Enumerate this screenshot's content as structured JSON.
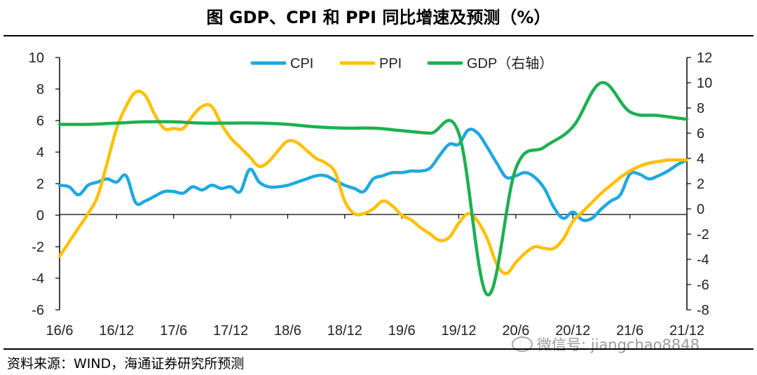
{
  "title": "图  GDP、CPI 和 PPI 同比增速及预测（%）",
  "source": "资料来源：WIND，海通证券研究所预测",
  "watermark": "微信号: jiangchao8848",
  "chart_data": {
    "type": "line",
    "x_tick_labels": [
      "16/6",
      "16/12",
      "17/6",
      "17/12",
      "18/6",
      "18/12",
      "19/6",
      "19/12",
      "20/6",
      "20/12",
      "21/6",
      "21/12"
    ],
    "x_range": [
      "2016-06",
      "2021-12"
    ],
    "left_axis": {
      "ylim": [
        -6,
        10
      ],
      "ticks": [
        -6,
        -4,
        -2,
        0,
        2,
        4,
        6,
        8,
        10
      ]
    },
    "right_axis": {
      "ylim": [
        -8,
        12
      ],
      "ticks": [
        -8,
        -6,
        -4,
        -2,
        0,
        2,
        4,
        6,
        8,
        10,
        12
      ]
    },
    "legend_position": "top-center",
    "series": [
      {
        "name": "CPI",
        "axis": "left",
        "color": "#1FA8E0",
        "points": [
          [
            "2016-06",
            1.9
          ],
          [
            "2016-07",
            1.8
          ],
          [
            "2016-08",
            1.3
          ],
          [
            "2016-09",
            1.9
          ],
          [
            "2016-10",
            2.1
          ],
          [
            "2016-11",
            2.3
          ],
          [
            "2016-12",
            2.1
          ],
          [
            "2017-01",
            2.5
          ],
          [
            "2017-02",
            0.8
          ],
          [
            "2017-03",
            0.9
          ],
          [
            "2017-04",
            1.2
          ],
          [
            "2017-05",
            1.5
          ],
          [
            "2017-06",
            1.5
          ],
          [
            "2017-07",
            1.4
          ],
          [
            "2017-08",
            1.8
          ],
          [
            "2017-09",
            1.6
          ],
          [
            "2017-10",
            1.9
          ],
          [
            "2017-11",
            1.7
          ],
          [
            "2017-12",
            1.8
          ],
          [
            "2018-01",
            1.5
          ],
          [
            "2018-02",
            2.9
          ],
          [
            "2018-03",
            2.1
          ],
          [
            "2018-04",
            1.8
          ],
          [
            "2018-05",
            1.8
          ],
          [
            "2018-06",
            1.9
          ],
          [
            "2018-07",
            2.1
          ],
          [
            "2018-08",
            2.3
          ],
          [
            "2018-09",
            2.5
          ],
          [
            "2018-10",
            2.5
          ],
          [
            "2018-11",
            2.2
          ],
          [
            "2018-12",
            1.9
          ],
          [
            "2019-01",
            1.7
          ],
          [
            "2019-02",
            1.5
          ],
          [
            "2019-03",
            2.3
          ],
          [
            "2019-04",
            2.5
          ],
          [
            "2019-05",
            2.7
          ],
          [
            "2019-06",
            2.7
          ],
          [
            "2019-07",
            2.8
          ],
          [
            "2019-08",
            2.8
          ],
          [
            "2019-09",
            3.0
          ],
          [
            "2019-10",
            3.8
          ],
          [
            "2019-11",
            4.5
          ],
          [
            "2019-12",
            4.5
          ],
          [
            "2020-01",
            5.4
          ],
          [
            "2020-02",
            5.2
          ],
          [
            "2020-03",
            4.3
          ],
          [
            "2020-04",
            3.3
          ],
          [
            "2020-05",
            2.4
          ],
          [
            "2020-06",
            2.5
          ],
          [
            "2020-07",
            2.7
          ],
          [
            "2020-08",
            2.4
          ],
          [
            "2020-09",
            1.7
          ],
          [
            "2020-10",
            0.5
          ],
          [
            "2020-11",
            -0.2
          ],
          [
            "2020-12",
            0.2
          ],
          [
            "2021-01",
            -0.3
          ],
          [
            "2021-02",
            -0.2
          ],
          [
            "2021-03",
            0.4
          ],
          [
            "2021-04",
            0.9
          ],
          [
            "2021-05",
            1.3
          ],
          [
            "2021-06",
            2.6
          ],
          [
            "2021-07",
            2.6
          ],
          [
            "2021-08",
            2.3
          ],
          [
            "2021-09",
            2.5
          ],
          [
            "2021-10",
            2.8
          ],
          [
            "2021-11",
            3.2
          ],
          [
            "2021-12",
            3.5
          ]
        ]
      },
      {
        "name": "PPI",
        "axis": "left",
        "color": "#FFC000",
        "points": [
          [
            "2016-06",
            -2.6
          ],
          [
            "2016-07",
            -1.7
          ],
          [
            "2016-08",
            -0.8
          ],
          [
            "2016-09",
            0.1
          ],
          [
            "2016-10",
            1.2
          ],
          [
            "2016-11",
            3.3
          ],
          [
            "2016-12",
            5.5
          ],
          [
            "2017-01",
            6.9
          ],
          [
            "2017-02",
            7.8
          ],
          [
            "2017-03",
            7.6
          ],
          [
            "2017-04",
            6.4
          ],
          [
            "2017-05",
            5.5
          ],
          [
            "2017-06",
            5.5
          ],
          [
            "2017-07",
            5.5
          ],
          [
            "2017-08",
            6.3
          ],
          [
            "2017-09",
            6.9
          ],
          [
            "2017-10",
            6.9
          ],
          [
            "2017-11",
            5.8
          ],
          [
            "2017-12",
            4.9
          ],
          [
            "2018-01",
            4.3
          ],
          [
            "2018-02",
            3.7
          ],
          [
            "2018-03",
            3.1
          ],
          [
            "2018-04",
            3.4
          ],
          [
            "2018-05",
            4.1
          ],
          [
            "2018-06",
            4.7
          ],
          [
            "2018-07",
            4.6
          ],
          [
            "2018-08",
            4.1
          ],
          [
            "2018-09",
            3.6
          ],
          [
            "2018-10",
            3.3
          ],
          [
            "2018-11",
            2.7
          ],
          [
            "2018-12",
            0.9
          ],
          [
            "2019-01",
            0.1
          ],
          [
            "2019-02",
            0.1
          ],
          [
            "2019-03",
            0.4
          ],
          [
            "2019-04",
            0.9
          ],
          [
            "2019-05",
            0.6
          ],
          [
            "2019-06",
            0.0
          ],
          [
            "2019-07",
            -0.3
          ],
          [
            "2019-08",
            -0.8
          ],
          [
            "2019-09",
            -1.2
          ],
          [
            "2019-10",
            -1.6
          ],
          [
            "2019-11",
            -1.4
          ],
          [
            "2019-12",
            -0.5
          ],
          [
            "2020-01",
            0.1
          ],
          [
            "2020-02",
            -0.4
          ],
          [
            "2020-03",
            -1.5
          ],
          [
            "2020-04",
            -3.1
          ],
          [
            "2020-05",
            -3.7
          ],
          [
            "2020-06",
            -3.0
          ],
          [
            "2020-07",
            -2.4
          ],
          [
            "2020-08",
            -2.0
          ],
          [
            "2020-09",
            -2.1
          ],
          [
            "2020-10",
            -2.1
          ],
          [
            "2020-11",
            -1.5
          ],
          [
            "2020-12",
            -0.4
          ],
          [
            "2021-01",
            0.2
          ],
          [
            "2021-02",
            0.8
          ],
          [
            "2021-03",
            1.4
          ],
          [
            "2021-04",
            1.9
          ],
          [
            "2021-05",
            2.4
          ],
          [
            "2021-06",
            2.8
          ],
          [
            "2021-07",
            3.1
          ],
          [
            "2021-08",
            3.3
          ],
          [
            "2021-09",
            3.4
          ],
          [
            "2021-10",
            3.5
          ],
          [
            "2021-11",
            3.5
          ],
          [
            "2021-12",
            3.5
          ]
        ]
      },
      {
        "name": "GDP（右轴）",
        "axis": "right",
        "color": "#1DB050",
        "points": [
          [
            "2016-06",
            6.7
          ],
          [
            "2016-09",
            6.7
          ],
          [
            "2016-12",
            6.8
          ],
          [
            "2017-03",
            6.9
          ],
          [
            "2017-06",
            6.9
          ],
          [
            "2017-09",
            6.8
          ],
          [
            "2017-12",
            6.8
          ],
          [
            "2018-03",
            6.8
          ],
          [
            "2018-06",
            6.7
          ],
          [
            "2018-09",
            6.5
          ],
          [
            "2018-12",
            6.4
          ],
          [
            "2019-03",
            6.4
          ],
          [
            "2019-06",
            6.2
          ],
          [
            "2019-09",
            6.0
          ],
          [
            "2019-12",
            6.0
          ],
          [
            "2020-03",
            -6.8
          ],
          [
            "2020-06",
            3.2
          ],
          [
            "2020-09",
            4.9
          ],
          [
            "2020-12",
            6.5
          ],
          [
            "2021-03",
            10.0
          ],
          [
            "2021-06",
            7.7
          ],
          [
            "2021-09",
            7.4
          ],
          [
            "2021-12",
            7.1
          ]
        ]
      }
    ]
  }
}
